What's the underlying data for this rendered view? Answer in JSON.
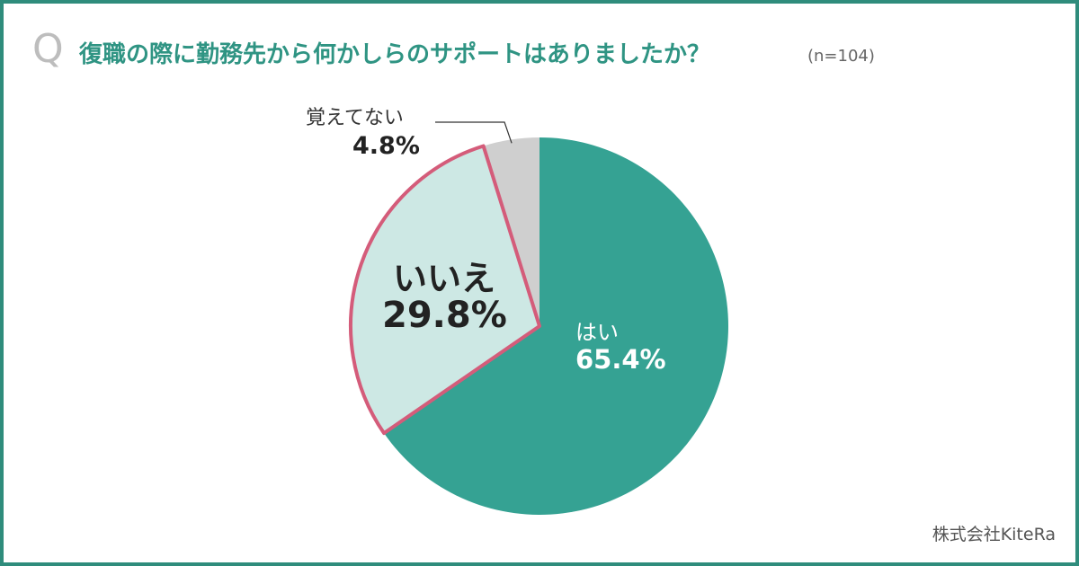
{
  "question": {
    "mark": "Q",
    "text": "復職の際に勤務先から何かしらのサポートはありましたか？",
    "sample": "(n=104)"
  },
  "colors": {
    "frame": "#2f8c7c",
    "title": "#2f9483",
    "yes": "#35a293",
    "no": "#cde8e4",
    "no_outline": "#d45c7a",
    "unsure": "#cfcfcf",
    "leader_line": "#333333"
  },
  "chart_data": {
    "type": "pie",
    "title": "復職の際に勤務先から何かしらのサポートはありましたか？",
    "n": 104,
    "start": "12 o'clock",
    "direction": "clockwise",
    "slices": [
      {
        "label": "はい",
        "value": 65.4,
        "value_label": "65.4%",
        "color": "#35a293"
      },
      {
        "label": "いいえ",
        "value": 29.8,
        "value_label": "29.8%",
        "color": "#cde8e4",
        "highlight": true
      },
      {
        "label": "覚えてない",
        "value": 4.8,
        "value_label": "4.8%",
        "color": "#cfcfcf"
      }
    ]
  },
  "credit": "株式会社KiteRa"
}
